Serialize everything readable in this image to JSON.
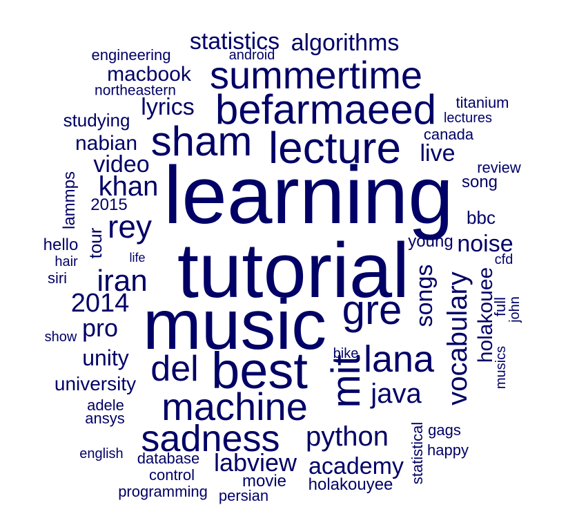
{
  "color": "#000066",
  "words": [
    "learning",
    "tutorial",
    "music",
    "best",
    "befarmaeed",
    "lecture",
    "sham",
    "summertime",
    "machine",
    "sadness",
    "mit",
    "gre",
    "lana",
    "del",
    "iran",
    "rey",
    "vocabulary",
    "python",
    "labview",
    "academy",
    "java",
    "2014",
    "songs",
    "khan",
    "video",
    "holakouee",
    "statistics",
    "algorithms",
    "macbook",
    "lyrics",
    "nabian",
    "unity",
    "pro",
    "noise",
    "university",
    "live",
    "studying",
    "engineering",
    "android",
    "northeastern",
    "titanium",
    "lectures",
    "canada",
    "review",
    "song",
    "2015",
    "lammps",
    "bbc",
    "tour",
    "hello",
    "hair",
    "siri",
    "life",
    "young",
    "cfd",
    "full",
    "john",
    "show",
    "bike",
    "musics",
    "adele",
    "ansys",
    "statistical",
    "gags",
    "happy",
    "english",
    "database",
    "control",
    "movie",
    "holakouyee",
    "programming",
    "persian"
  ]
}
